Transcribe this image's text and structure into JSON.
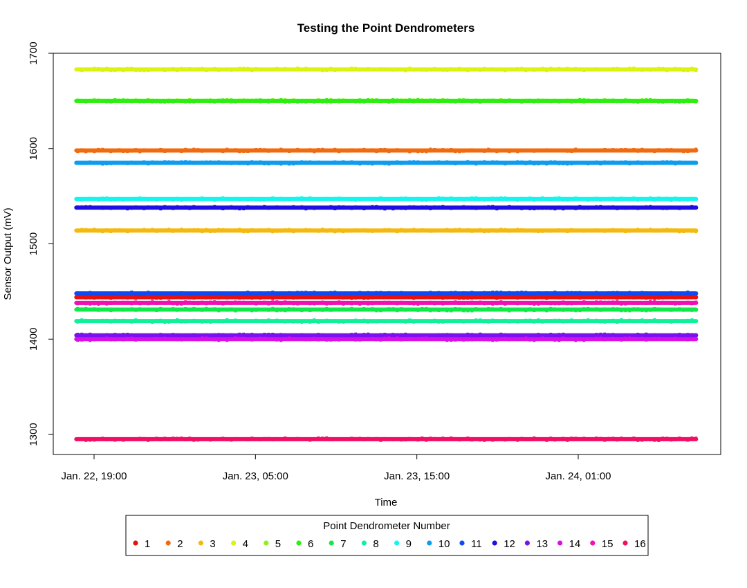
{
  "chart_data": {
    "type": "line",
    "title": "Testing the Point Dendrometers",
    "xlabel": "Time",
    "ylabel": "Sensor Output (mV)",
    "x_ticks": [
      "Jan. 22, 19:00",
      "Jan. 23, 05:00",
      "Jan. 23, 15:00",
      "Jan. 24, 01:00"
    ],
    "y_ticks": [
      1300,
      1400,
      1500,
      1600,
      1700
    ],
    "ylim": [
      1280,
      1703
    ],
    "xlim_hours_from_first_tick": [
      -2.5,
      36.5
    ],
    "data_x_range_hours_from_first_tick": [
      -1.1,
      37.3
    ],
    "grid": false,
    "legend": {
      "title": "Point Dendrometer Number",
      "placement": "bottom-center"
    },
    "series": [
      {
        "name": "1",
        "color": "#E8110E",
        "value": 1444
      },
      {
        "name": "2",
        "color": "#F06A0F",
        "value": 1598
      },
      {
        "name": "3",
        "color": "#F5B80C",
        "value": 1514
      },
      {
        "name": "4",
        "color": "#DDF20F",
        "value": 1683
      },
      {
        "name": "5",
        "color": "#8EF21A",
        "value": 1650
      },
      {
        "name": "6",
        "color": "#2BEE12",
        "value": 1650
      },
      {
        "name": "7",
        "color": "#13E84A",
        "value": 1431
      },
      {
        "name": "8",
        "color": "#10F09B",
        "value": 1419
      },
      {
        "name": "9",
        "color": "#12F5F0",
        "value": 1547
      },
      {
        "name": "10",
        "color": "#0F9BEE",
        "value": 1585
      },
      {
        "name": "11",
        "color": "#1148F0",
        "value": 1448
      },
      {
        "name": "12",
        "color": "#1E0FE3",
        "value": 1538
      },
      {
        "name": "13",
        "color": "#7A11EE",
        "value": 1404
      },
      {
        "name": "14",
        "color": "#D80FE6",
        "value": 1400
      },
      {
        "name": "15",
        "color": "#F20FB4",
        "value": 1438
      },
      {
        "name": "16",
        "color": "#F20E63",
        "value": 1295
      }
    ]
  }
}
